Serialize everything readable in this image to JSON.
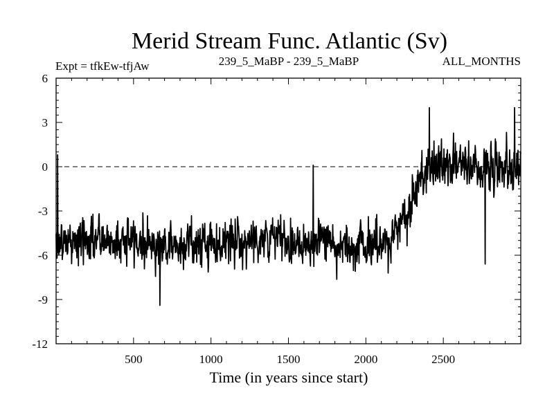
{
  "chart_data": {
    "type": "line",
    "title": "Merid Stream Func. Atlantic (Sv)",
    "subtitle_left": "Expt = tfkEw-tfjAw",
    "subtitle_center": "239_5_MaBP - 239_5_MaBP",
    "subtitle_right": "ALL_MONTHS",
    "xlabel": "Time (in years since start)",
    "ylabel": "",
    "xlim": [
      0,
      3000
    ],
    "ylim": [
      -12,
      6
    ],
    "xticks": [
      500,
      1000,
      1500,
      2000,
      2500
    ],
    "xtick_labels": [
      "500",
      "1000",
      "1500",
      "2000",
      "2500"
    ],
    "yticks": [
      6,
      3,
      0,
      -3,
      -6,
      -9,
      -12
    ],
    "ytick_labels": [
      "6",
      "3",
      "0",
      "-3",
      "-6",
      "-9",
      "-12"
    ],
    "reference_line": {
      "y": 0,
      "style": "dashed"
    },
    "grid": false,
    "series": [
      {
        "color": "#000000",
        "x": [
          0,
          100,
          200,
          300,
          400,
          500,
          600,
          700,
          800,
          900,
          1000,
          1100,
          1200,
          1300,
          1400,
          1500,
          1600,
          1700,
          1800,
          1900,
          2000,
          2100,
          2150,
          2200,
          2250,
          2300,
          2350,
          2400,
          2500,
          2600,
          2700,
          2800,
          2900,
          3000
        ],
        "mean": [
          -5.2,
          -5.1,
          -5.0,
          -5.0,
          -5.1,
          -5.0,
          -5.2,
          -5.3,
          -5.3,
          -5.2,
          -5.2,
          -5.1,
          -5.0,
          -4.9,
          -4.9,
          -5.1,
          -5.0,
          -5.1,
          -5.2,
          -5.3,
          -5.3,
          -5.3,
          -5.3,
          -4.2,
          -3.2,
          -2.3,
          -0.8,
          0.0,
          0.1,
          0.0,
          0.1,
          0.0,
          0.1,
          0.1
        ],
        "noise_sd": 1.1,
        "extremes": [
          {
            "x": 10,
            "y": 0.8
          },
          {
            "x": 670,
            "y": -9.4
          },
          {
            "x": 1660,
            "y": 0.1
          },
          {
            "x": 2410,
            "y": 4.0
          },
          {
            "x": 2770,
            "y": -6.6
          },
          {
            "x": 2960,
            "y": 4.0
          }
        ]
      }
    ]
  }
}
